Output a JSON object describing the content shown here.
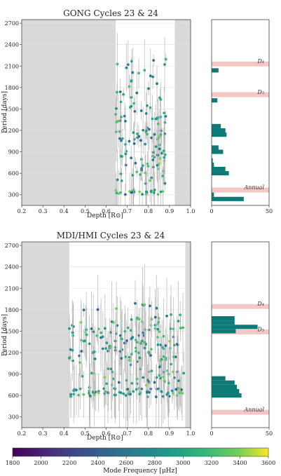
{
  "chart_data": [
    {
      "type": "scatter",
      "title": "GONG Cycles 23 & 24",
      "xlabel": "Depth [R⊙]",
      "ylabel": "Period [days]",
      "xlim": [
        0.2,
        1.0
      ],
      "ylim": [
        150,
        2750
      ],
      "xticks": [
        "0.2",
        "0.3",
        "0.4",
        "0.5",
        "0.6",
        "0.7",
        "0.8",
        "0.9",
        "1.0"
      ],
      "yticks": [
        "300",
        "600",
        "900",
        "1200",
        "1500",
        "1800",
        "2100",
        "2400",
        "2700"
      ],
      "grid": true,
      "shaded_x": [
        [
          0.2,
          0.645
        ],
        [
          0.925,
          1.0
        ]
      ],
      "seed": 11,
      "points_count": 150,
      "point_clusters_depth": [
        0.64,
        0.89
      ],
      "histogram": {
        "xlim": [
          0,
          50
        ],
        "xticks": [
          "0",
          "50"
        ],
        "bin_start": 150,
        "bin_width": 60,
        "counts": [
          0,
          28,
          2,
          0,
          0,
          0,
          0,
          15,
          12,
          2,
          1,
          0,
          10,
          6,
          0,
          0,
          13,
          12,
          8,
          0,
          0,
          0,
          0,
          0,
          5,
          0,
          0,
          0,
          0,
          0,
          0,
          6,
          0,
          0,
          0,
          0,
          0,
          0,
          0,
          0,
          0,
          0,
          0,
          0
        ],
        "bands": [
          {
            "label": "Annual",
            "period": 365
          },
          {
            "label": "D₅",
            "period": 1700
          },
          {
            "label": "D₄",
            "period": 2130
          }
        ]
      }
    },
    {
      "type": "scatter",
      "title": "MDI/HMI Cycles 23 & 24",
      "xlabel": "Depth [R⊙]",
      "ylabel": "Period [days]",
      "xlim": [
        0.2,
        1.0
      ],
      "ylim": [
        150,
        2750
      ],
      "xticks": [
        "0.2",
        "0.3",
        "0.4",
        "0.5",
        "0.6",
        "0.7",
        "0.8",
        "0.9",
        "1.0"
      ],
      "yticks": [
        "300",
        "600",
        "900",
        "1200",
        "1500",
        "1800",
        "2100",
        "2400",
        "2700"
      ],
      "grid": true,
      "shaded_x": [
        [
          0.2,
          0.425
        ],
        [
          0.975,
          1.0
        ]
      ],
      "seed": 29,
      "points_count": 260,
      "point_clusters_depth": [
        0.42,
        0.98
      ],
      "histogram": {
        "xlim": [
          0,
          50
        ],
        "xticks": [
          "0",
          "50"
        ],
        "bin_start": 150,
        "bin_width": 60,
        "counts": [
          0,
          0,
          0,
          0,
          0,
          0,
          0,
          26,
          24,
          22,
          20,
          12,
          0,
          0,
          0,
          0,
          0,
          0,
          0,
          0,
          0,
          0,
          21,
          40,
          20,
          20,
          0,
          0,
          0,
          0,
          0,
          0,
          0,
          0,
          0,
          0,
          0,
          0,
          0,
          0,
          0,
          0,
          0,
          0
        ],
        "bands": [
          {
            "label": "Annual",
            "period": 365
          },
          {
            "label": "D₅",
            "period": 1490
          },
          {
            "label": "D₄",
            "period": 1845
          }
        ]
      }
    },
    {
      "type": "colorbar",
      "label": "Mode Frequency [μHz]",
      "range": [
        1800,
        3600
      ],
      "ticks": [
        "1800",
        "2000",
        "2200",
        "2400",
        "2600",
        "2800",
        "3000",
        "3200",
        "3400",
        "3600"
      ],
      "colormap": "viridis"
    }
  ]
}
